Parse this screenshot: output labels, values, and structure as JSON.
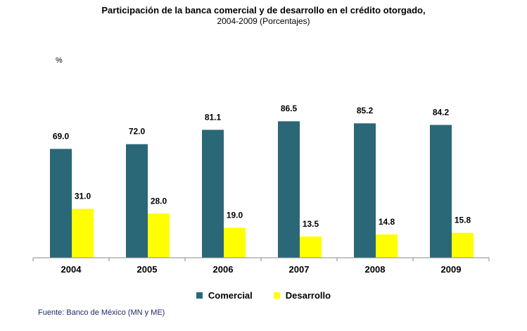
{
  "chart_data": {
    "type": "bar",
    "title": "Participación de la banca comercial y de desarrollo en el crédito otorgado,",
    "subtitle": "2004-2009 (Porcentajes)",
    "unit_label": "%",
    "categories": [
      "2004",
      "2005",
      "2006",
      "2007",
      "2008",
      "2009"
    ],
    "series": [
      {
        "name": "Comercial",
        "color": "#2a6777",
        "values": [
          69.0,
          72.0,
          81.1,
          86.5,
          85.2,
          84.2
        ]
      },
      {
        "name": "Desarrollo",
        "color": "#ffff00",
        "values": [
          31.0,
          28.0,
          19.0,
          13.5,
          14.8,
          15.8
        ]
      }
    ],
    "ylim": [
      0,
      100
    ],
    "grid": false,
    "legend_position": "bottom",
    "source": "Fuente: Banco de México (MN y ME)"
  }
}
